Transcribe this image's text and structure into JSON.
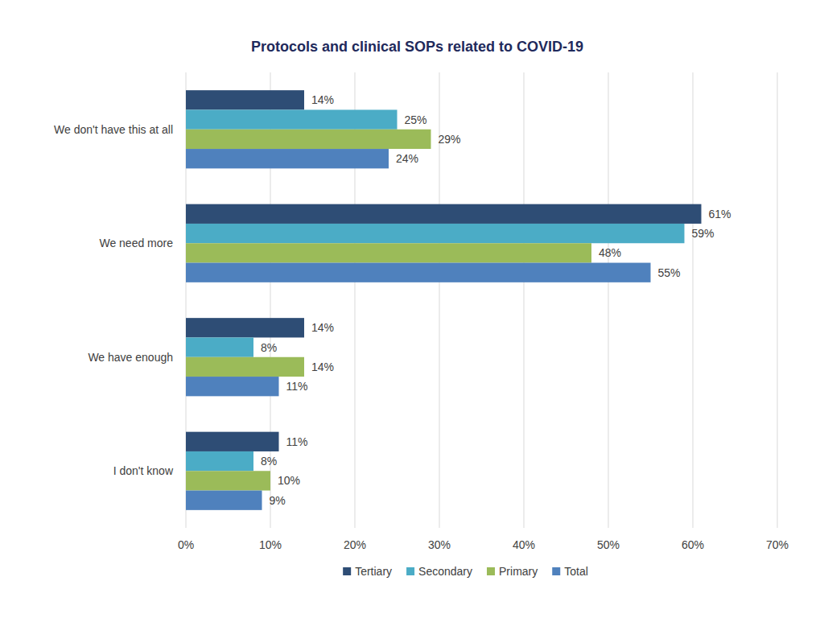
{
  "chart_data": {
    "type": "bar",
    "orientation": "horizontal",
    "title": "Protocols and clinical SOPs related to COVID-19",
    "categories": [
      "We don't have this at all",
      "We need more",
      "We have enough",
      "I don't know"
    ],
    "series": [
      {
        "name": "Tertiary",
        "color": "#2e4d75",
        "values": [
          14,
          61,
          14,
          11
        ],
        "value_labels": [
          "14%",
          "61%",
          "14%",
          "11%"
        ]
      },
      {
        "name": "Secondary",
        "color": "#4bacc6",
        "values": [
          25,
          59,
          8,
          8
        ],
        "value_labels": [
          "25%",
          "59%",
          "8%",
          "8%"
        ]
      },
      {
        "name": "Primary",
        "color": "#9bbb59",
        "values": [
          29,
          48,
          14,
          10
        ],
        "value_labels": [
          "29%",
          "48%",
          "14%",
          "10%"
        ]
      },
      {
        "name": "Total",
        "color": "#4f81bd",
        "values": [
          24,
          55,
          11,
          9
        ],
        "value_labels": [
          "24%",
          "55%",
          "11%",
          "9%"
        ]
      }
    ],
    "xlim": [
      0,
      70
    ],
    "xticks": [
      {
        "value": 0,
        "label": "0%"
      },
      {
        "value": 10,
        "label": "10%"
      },
      {
        "value": 20,
        "label": "20%"
      },
      {
        "value": 30,
        "label": "30%"
      },
      {
        "value": 40,
        "label": "40%"
      },
      {
        "value": 50,
        "label": "50%"
      },
      {
        "value": 60,
        "label": "60%"
      },
      {
        "value": 70,
        "label": "70%"
      }
    ],
    "grid": true,
    "legend": "bottom",
    "data_labels": true
  }
}
